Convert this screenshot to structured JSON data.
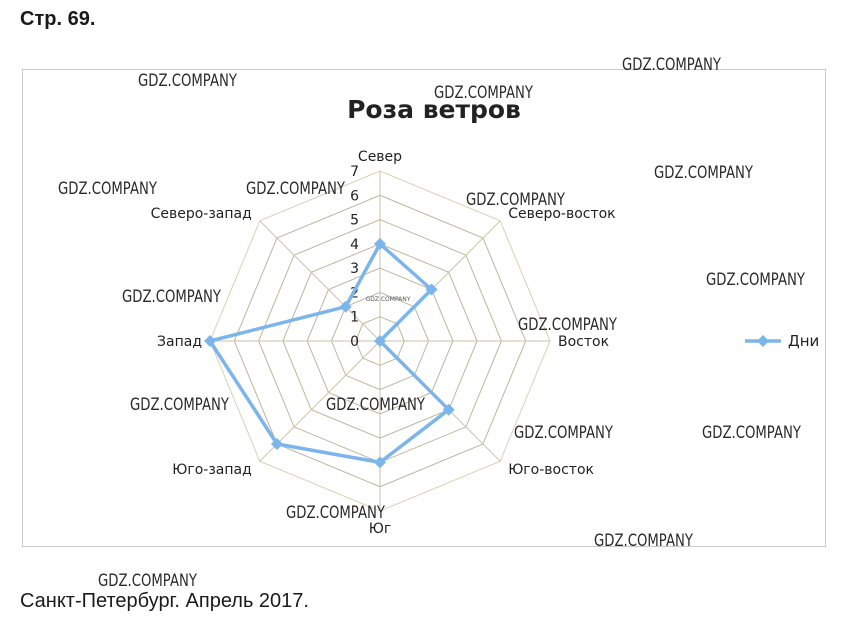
{
  "page": {
    "header": "Стр. 69.",
    "caption": "Санкт-Петербург. Апрель 2017."
  },
  "chart_data": {
    "type": "radar",
    "title": "Роза ветров",
    "categories": [
      "Север",
      "Северо-восток",
      "Восток",
      "Юго-восток",
      "Юг",
      "Юго-запад",
      "Запад",
      "Северо-запад"
    ],
    "series": [
      {
        "name": "Дни",
        "values": [
          4,
          3,
          0,
          4,
          5,
          6,
          7,
          2
        ],
        "color": "#7cb5ec"
      }
    ],
    "ticks": [
      "0",
      "1",
      "2",
      "3",
      "4",
      "5",
      "6",
      "7"
    ],
    "rmax": 7,
    "grid": true,
    "legend": "right"
  },
  "watermarks": [
    "GDZ.COMPANY",
    "GDZ.COMPANY",
    "GDZ.COMPANY",
    "GDZ.COMPANY",
    "GDZ.COMPANY",
    "GDZ.COMPANY",
    "GDZ.COMPANY",
    "GDZ.COMPANY",
    "GDZ.COMPANY",
    "GDZ.COMPANY",
    "GDZ.COMPANY",
    "GDZ.COMPANY",
    "GDZ.COMPANY",
    "GDZ.COMPANY",
    "GDZ.COMPANY",
    "GDZ.COMPANY",
    "GDZ.COMPANY",
    "GDZ.COMPANY"
  ]
}
